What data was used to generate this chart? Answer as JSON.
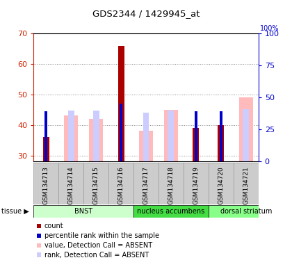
{
  "title": "GDS2344 / 1429945_at",
  "samples": [
    "GSM134713",
    "GSM134714",
    "GSM134715",
    "GSM134716",
    "GSM134717",
    "GSM134718",
    "GSM134719",
    "GSM134720",
    "GSM134721"
  ],
  "tissues": [
    {
      "label": "BNST",
      "start": 0,
      "end": 4,
      "color": "#ccffcc"
    },
    {
      "label": "nucleus accumbens",
      "start": 4,
      "end": 7,
      "color": "#55ee55"
    },
    {
      "label": "dorsal striatum",
      "start": 7,
      "end": 10,
      "color": "#88ff88"
    }
  ],
  "count_values": [
    36,
    null,
    null,
    66,
    null,
    null,
    39,
    40,
    null
  ],
  "percentile_values": [
    39,
    null,
    null,
    45,
    null,
    null,
    39,
    39,
    null
  ],
  "absent_value_bars": [
    null,
    43,
    42,
    null,
    38,
    45,
    null,
    null,
    49
  ],
  "absent_rank_bars": [
    null,
    40,
    40,
    null,
    38,
    40,
    null,
    null,
    41
  ],
  "ylim_left": [
    28,
    70
  ],
  "ylim_right": [
    0,
    100
  ],
  "yticks_left": [
    30,
    40,
    50,
    60,
    70
  ],
  "yticks_right": [
    0,
    25,
    50,
    75,
    100
  ],
  "left_color": "#cc2200",
  "right_color": "#0000cc",
  "count_color": "#aa0000",
  "percentile_color": "#0000cc",
  "absent_value_color": "#ffbbbb",
  "absent_rank_color": "#ccccff",
  "legend_items": [
    {
      "color": "#aa0000",
      "label": "count"
    },
    {
      "color": "#0000cc",
      "label": "percentile rank within the sample"
    },
    {
      "color": "#ffbbbb",
      "label": "value, Detection Call = ABSENT"
    },
    {
      "color": "#ccccff",
      "label": "rank, Detection Call = ABSENT"
    }
  ]
}
